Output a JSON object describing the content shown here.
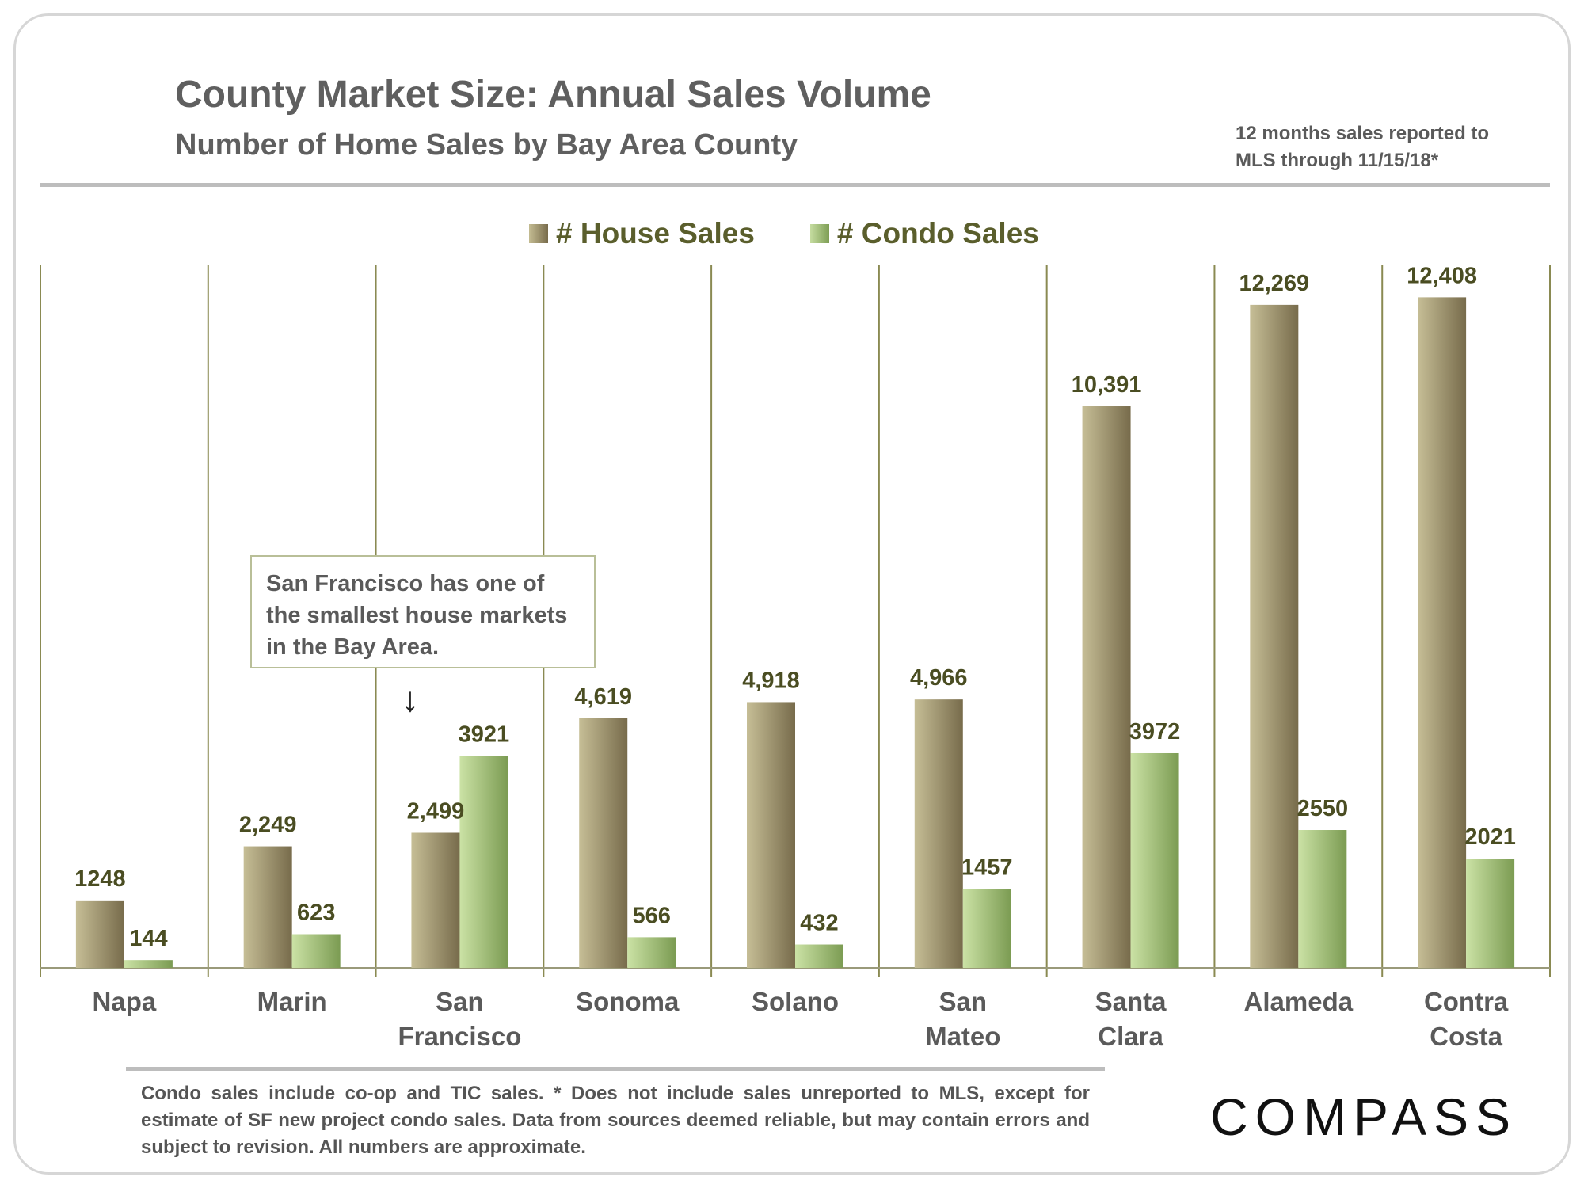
{
  "chart_data": {
    "type": "bar",
    "title": "County Market Size: Annual Sales Volume",
    "subtitle": "Number of Home Sales by Bay Area County",
    "note": "12 months sales reported to MLS through 11/15/18*",
    "categories": [
      "Napa",
      "Marin",
      "San Francisco",
      "Sonoma",
      "Solano",
      "San Mateo",
      "Santa Clara",
      "Alameda",
      "Contra Costa"
    ],
    "category_lines": [
      [
        "Napa"
      ],
      [
        "Marin"
      ],
      [
        "San",
        "Francisco"
      ],
      [
        "Sonoma"
      ],
      [
        "Solano"
      ],
      [
        "San",
        "Mateo"
      ],
      [
        "Santa",
        "Clara"
      ],
      [
        "Alameda"
      ],
      [
        "Contra",
        "Costa"
      ]
    ],
    "series": [
      {
        "name": "# House Sales",
        "values": [
          1248,
          2249,
          2499,
          4619,
          4918,
          4966,
          10391,
          12269,
          12408
        ],
        "labels": [
          "1248",
          "2,249",
          "2,499",
          "4,619",
          "4,918",
          "4,966",
          "10,391",
          "12,269",
          "12,408"
        ]
      },
      {
        "name": "# Condo Sales",
        "values": [
          144,
          623,
          3921,
          566,
          432,
          1457,
          3972,
          2550,
          2021
        ],
        "labels": [
          "144",
          "623",
          "3921",
          "566",
          "432",
          "1457",
          "3972",
          "2550",
          "2021"
        ]
      }
    ],
    "ylim": [
      0,
      13000
    ],
    "xlabel": "",
    "ylabel": "",
    "grid": false,
    "legend_position": "top-center",
    "colors": {
      "house": "#9d9272",
      "condo": "#a3c07a"
    }
  },
  "callout": {
    "text": "San Francisco has one of the smallest house markets in the Bay Area.",
    "arrow": "↓"
  },
  "footnote": "Condo sales include co-op and TIC sales. * Does not include sales unreported to MLS, except for estimate of SF new project condo sales. Data from sources deemed reliable, but may contain errors and subject to revision. All numbers are approximate.",
  "logo": "COMPASS"
}
